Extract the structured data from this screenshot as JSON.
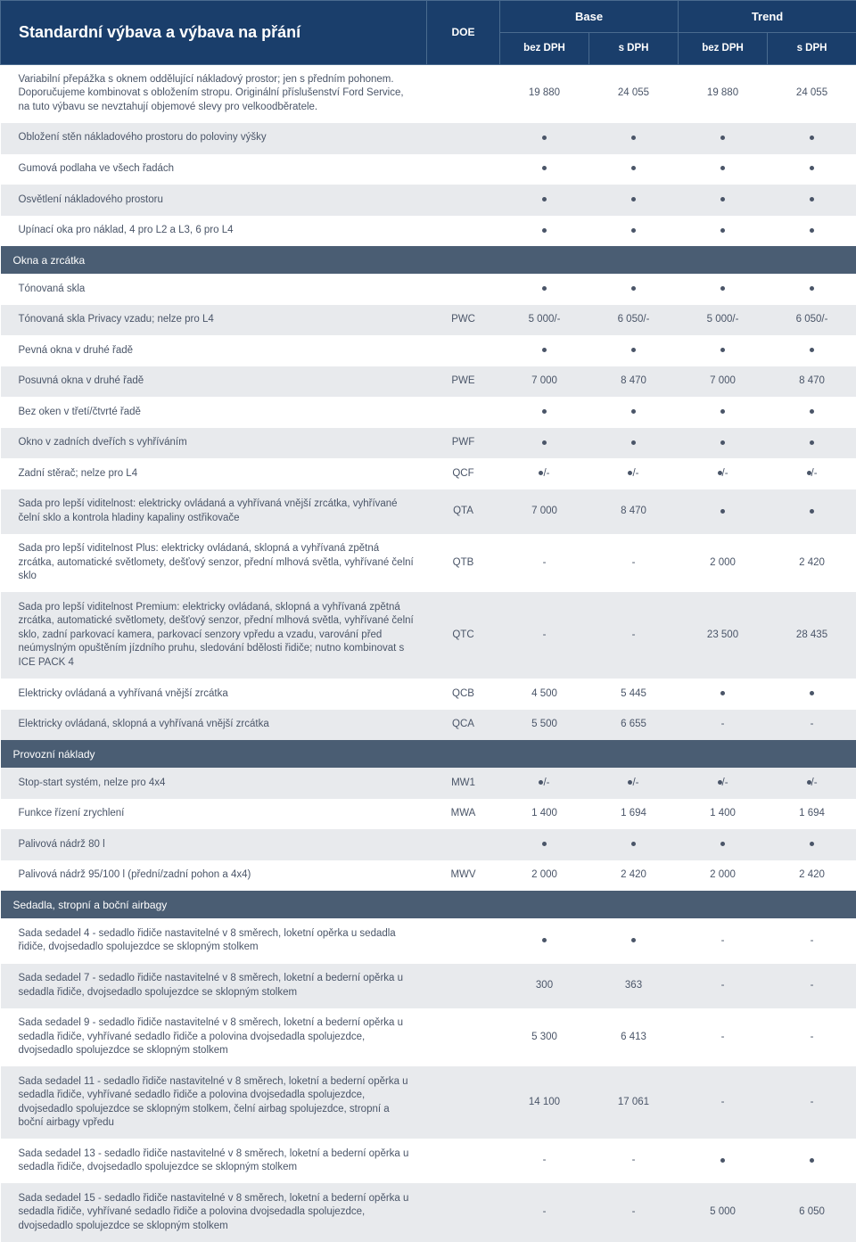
{
  "header": {
    "title": "Standardní výbava a výbava na přání",
    "doe": "DOE",
    "trims": [
      "Base",
      "Trend"
    ],
    "subs": [
      "bez DPH",
      "s DPH"
    ]
  },
  "colors": {
    "header_bg": "#1a3e6b",
    "header_border": "#4a6b8f",
    "section_bg": "#4a5d73",
    "shade_bg": "#e8eaed",
    "text": "#4a5568"
  },
  "rows": [
    {
      "type": "data",
      "shade": "light",
      "desc": "Variabilní přepážka s oknem oddělující nákladový prostor; jen s předním pohonem. Doporučujeme kombinovat s obložením stropu. Originální příslušenství Ford Service, na tuto výbavu se nevztahují objemové slevy pro velkoodběratele.",
      "doe": "",
      "v": [
        "19 880",
        "24 055",
        "19 880",
        "24 055"
      ]
    },
    {
      "type": "data",
      "shade": "shade",
      "desc": "Obložení stěn nákladového prostoru do poloviny výšky",
      "doe": "",
      "v": [
        "•",
        "•",
        "•",
        "•"
      ]
    },
    {
      "type": "data",
      "shade": "light",
      "desc": "Gumová podlaha ve všech řadách",
      "doe": "",
      "v": [
        "•",
        "•",
        "•",
        "•"
      ]
    },
    {
      "type": "data",
      "shade": "shade",
      "desc": "Osvětlení nákladového prostoru",
      "doe": "",
      "v": [
        "•",
        "•",
        "•",
        "•"
      ]
    },
    {
      "type": "data",
      "shade": "light",
      "desc": "Upínací oka pro náklad, 4 pro L2 a L3, 6 pro L4",
      "doe": "",
      "v": [
        "•",
        "•",
        "•",
        "•"
      ]
    },
    {
      "type": "section",
      "desc": "Okna a zrcátka"
    },
    {
      "type": "data",
      "shade": "light",
      "desc": "Tónovaná skla",
      "doe": "",
      "v": [
        "•",
        "•",
        "•",
        "•"
      ]
    },
    {
      "type": "data",
      "shade": "shade",
      "desc": "Tónovaná skla Privacy vzadu; nelze pro L4",
      "doe": "PWC",
      "v": [
        "5 000/-",
        "6 050/-",
        "5 000/-",
        "6 050/-"
      ]
    },
    {
      "type": "data",
      "shade": "light",
      "desc": "Pevná okna v druhé řadě",
      "doe": "",
      "v": [
        "•",
        "•",
        "•",
        "•"
      ]
    },
    {
      "type": "data",
      "shade": "shade",
      "desc": "Posuvná okna v druhé řadě",
      "doe": "PWE",
      "v": [
        "7 000",
        "8 470",
        "7 000",
        "8 470"
      ]
    },
    {
      "type": "data",
      "shade": "light",
      "desc": "Bez oken v třetí/čtvrté řadě",
      "doe": "",
      "v": [
        "•",
        "•",
        "•",
        "•"
      ]
    },
    {
      "type": "data",
      "shade": "shade",
      "desc": "Okno v zadních dveřích s vyhříváním",
      "doe": "PWF",
      "v": [
        "•",
        "•",
        "•",
        "•"
      ]
    },
    {
      "type": "data",
      "shade": "light",
      "desc": "Zadní stěrač; nelze pro L4",
      "doe": "QCF",
      "v": [
        "•/-",
        "•/-",
        "•/-",
        "•/-"
      ]
    },
    {
      "type": "data",
      "shade": "shade",
      "desc": "Sada pro lepší viditelnost: elektricky ovládaná a vyhřívaná vnější zrcátka, vyhřívané čelní sklo a kontrola hladiny kapaliny ostřikovače",
      "doe": "QTA",
      "v": [
        "7 000",
        "8 470",
        "•",
        "•"
      ]
    },
    {
      "type": "data",
      "shade": "light",
      "desc": "Sada pro lepší viditelnost Plus: elektricky ovládaná, sklopná  a vyhřívaná zpětná zrcátka, automatické světlomety, dešťový senzor, přední mlhová světla, vyhřívané čelní sklo",
      "doe": "QTB",
      "v": [
        "-",
        "-",
        "2 000",
        "2 420"
      ]
    },
    {
      "type": "data",
      "shade": "shade",
      "desc": "Sada pro lepší viditelnost Premium: elektricky ovládaná, sklopná  a vyhřívaná zpětná zrcátka, automatické světlomety, dešťový senzor, přední mlhová světla, vyhřívané čelní sklo, zadní parkovací kamera, parkovací senzory vpředu a vzadu, varování před neúmyslným opuštěním jízdního pruhu, sledování bdělosti řidiče; nutno kombinovat s ICE PACK 4",
      "doe": "QTC",
      "v": [
        "-",
        "-",
        "23 500",
        "28 435"
      ]
    },
    {
      "type": "data",
      "shade": "light",
      "desc": "Elektricky ovládaná a vyhřívaná vnější zrcátka",
      "doe": "QCB",
      "v": [
        "4 500",
        "5 445",
        "•",
        "•"
      ]
    },
    {
      "type": "data",
      "shade": "shade",
      "desc": "Elektricky ovládaná, sklopná a vyhřívaná vnější zrcátka",
      "doe": "QCA",
      "v": [
        "5 500",
        "6 655",
        "-",
        "-"
      ]
    },
    {
      "type": "section",
      "desc": "Provozní náklady"
    },
    {
      "type": "data",
      "shade": "shade",
      "desc": "Stop-start systém, nelze pro 4x4",
      "doe": "MW1",
      "v": [
        "•/-",
        "•/-",
        "•/-",
        "•/-"
      ]
    },
    {
      "type": "data",
      "shade": "light",
      "desc": "Funkce řízení zrychlení",
      "doe": "MWA",
      "v": [
        "1 400",
        "1 694",
        "1 400",
        "1 694"
      ]
    },
    {
      "type": "data",
      "shade": "shade",
      "desc": "Palivová nádrž 80 l",
      "doe": "",
      "v": [
        "•",
        "•",
        "•",
        "•"
      ]
    },
    {
      "type": "data",
      "shade": "light",
      "desc": "Palivová nádrž 95/100 l (přední/zadní pohon a 4x4)",
      "doe": "MWV",
      "v": [
        "2 000",
        "2 420",
        "2 000",
        "2 420"
      ]
    },
    {
      "type": "section",
      "desc": "Sedadla, stropní a boční airbagy"
    },
    {
      "type": "data",
      "shade": "light",
      "desc": "Sada sedadel 4 - sedadlo řidiče nastavitelné v 8 směrech, loketní opěrka u sedadla řidiče, dvojsedadlo spolujezdce se sklopným stolkem",
      "doe": "",
      "v": [
        "•",
        "•",
        "-",
        "-"
      ]
    },
    {
      "type": "data",
      "shade": "shade",
      "desc": "Sada sedadel 7 - sedadlo řidiče nastavitelné v 8 směrech, loketní a bederní opěrka u sedadla řidiče, dvojsedadlo spolujezdce se sklopným stolkem",
      "doe": "",
      "v": [
        "300",
        "363",
        "-",
        "-"
      ]
    },
    {
      "type": "data",
      "shade": "light",
      "desc": "Sada sedadel 9 - sedadlo řidiče nastavitelné v 8 směrech, loketní a bederní opěrka u sedadla řidiče, vyhřívané sedadlo řidiče a polovina dvojsedadla spolujezdce, dvojsedadlo spolujezdce se sklopným stolkem",
      "doe": "",
      "v": [
        "5 300",
        "6 413",
        "-",
        "-"
      ]
    },
    {
      "type": "data",
      "shade": "shade",
      "desc": "Sada sedadel 11 - sedadlo řidiče nastavitelné v 8 směrech, loketní a bederní opěrka u sedadla řidiče, vyhřívané sedadlo řidiče a polovina dvojsedadla spolujezdce, dvojsedadlo spolujezdce se sklopným stolkem, čelní airbag spolujezdce, stropní a boční airbagy vpředu",
      "doe": "",
      "v": [
        "14 100",
        "17 061",
        "-",
        "-"
      ]
    },
    {
      "type": "data",
      "shade": "light",
      "desc": "Sada sedadel 13 - sedadlo řidiče nastavitelné v 8 směrech, loketní a bederní opěrka u sedadla řidiče, dvojsedadlo spolujezdce se sklopným stolkem",
      "doe": "",
      "v": [
        "-",
        "-",
        "•",
        "•"
      ]
    },
    {
      "type": "data",
      "shade": "shade",
      "desc": "Sada sedadel 15 - sedadlo řidiče nastavitelné v 8 směrech, loketní a bederní opěrka u sedadla řidiče, vyhřívané sedadlo řidiče a polovina dvojsedadla spolujezdce, dvojsedadlo spolujezdce se sklopným stolkem",
      "doe": "",
      "v": [
        "-",
        "-",
        "5 000",
        "6 050"
      ]
    }
  ]
}
